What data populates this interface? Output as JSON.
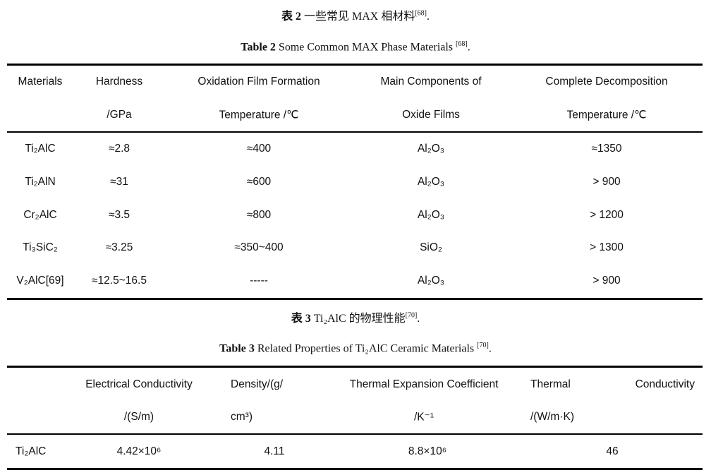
{
  "table2": {
    "caption_cn": {
      "label": "表 2",
      "text": "一些常见 MAX 相材料",
      "ref": "[68]",
      "end": "."
    },
    "caption_en": {
      "label": "Table 2",
      "text": " Some Common MAX Phase Materials ",
      "ref": "[68]",
      "end": "."
    },
    "headers": [
      [
        "Materials",
        ""
      ],
      [
        "Hardness",
        "/GPa"
      ],
      [
        "Oxidation Film Formation",
        "Temperature /℃"
      ],
      [
        "Main Components of",
        "Oxide Films"
      ],
      [
        "Complete Decomposition",
        "Temperature /℃"
      ]
    ],
    "rows": [
      [
        "Ti₂AlC",
        "≈2.8",
        "≈400",
        "Al₂O₃",
        "≈1350"
      ],
      [
        "Ti₂AlN",
        "≈31",
        "≈600",
        "Al₂O₃",
        "> 900"
      ],
      [
        "Cr₂AlC",
        "≈3.5",
        "≈800",
        "Al₂O₃",
        "> 1200"
      ],
      [
        "Ti₃SiC₂",
        "≈3.25",
        "≈350~400",
        "SiO₂",
        "> 1300"
      ],
      [
        "V₂AlC[69]",
        "≈12.5~16.5",
        "-----",
        "Al₂O₃",
        "> 900"
      ]
    ]
  },
  "table3": {
    "caption_cn": {
      "label": "表 3",
      "text": " Ti₂AlC 的物理性能",
      "ref": "[70]",
      "end": "."
    },
    "caption_en": {
      "label": "Table 3",
      "text": " Related Properties of Ti₂AlC Ceramic Materials ",
      "ref": "[70]",
      "end": "."
    },
    "headers": {
      "electrical": [
        "Electrical Conductivity",
        "/(S/m)"
      ],
      "density": [
        "Density/(g/",
        "cm³)"
      ],
      "expansion": [
        "Thermal Expansion Coefficient",
        "/K⁻¹"
      ],
      "thermal": [
        "Thermal",
        "Conductivity",
        "/(W/m·K)"
      ]
    },
    "row": [
      "Ti₂AlC",
      "4.42×10⁶",
      "4.11",
      "8.8×10⁶",
      "46"
    ]
  }
}
